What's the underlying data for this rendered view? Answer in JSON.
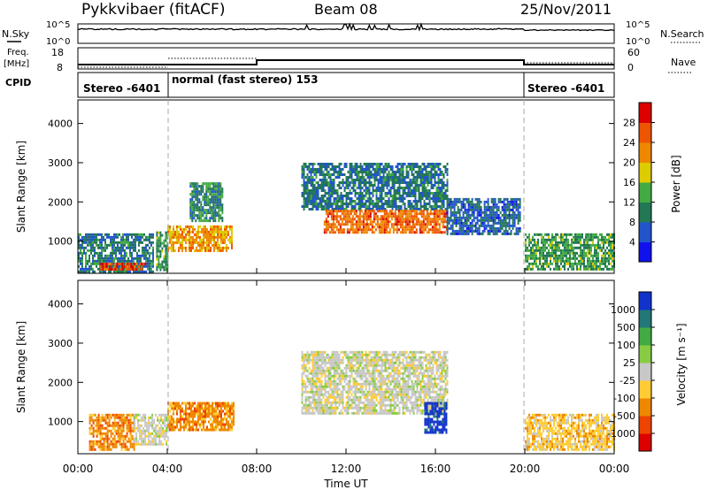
{
  "header": {
    "station": "Pykkvibaer (fitACF)",
    "beam": "Beam 08",
    "date": "25/Nov/2011"
  },
  "strip_labels": {
    "nsky": "N.Sky",
    "freq_line1": "Freq.",
    "freq_line2": "[MHz]",
    "cpid": "CPID",
    "nsearch": "N.Search",
    "nave": "Nave",
    "nsky_ticks": [
      "10^5",
      "10^0"
    ],
    "freq_ticks": [
      "18",
      "8"
    ],
    "nsearch_ticks": [
      "10^5",
      "10^0"
    ],
    "nave_ticks": [
      "60",
      "0"
    ]
  },
  "cpid_segments": [
    {
      "label": "Stereo -6401",
      "start_h": 0,
      "end_h": 4
    },
    {
      "label": "normal (fast stereo) 153",
      "start_h": 4,
      "end_h": 20
    },
    {
      "label": "Stereo -6401",
      "start_h": 20,
      "end_h": 24
    }
  ],
  "x_axis": {
    "label": "Time UT",
    "range_h": [
      0,
      24
    ],
    "ticks": [
      "00:00",
      "04:00",
      "08:00",
      "12:00",
      "16:00",
      "20:00",
      "00:00"
    ]
  },
  "colors": {
    "power_scale": [
      "#1111ee",
      "#2255cc",
      "#227755",
      "#44aa44",
      "#ddcc00",
      "#ee8800",
      "#ee5500",
      "#dd0000"
    ],
    "velocity_scale": [
      "#dd0000",
      "#ee4400",
      "#ee8800",
      "#ffcc33",
      "#c8c8c8",
      "#88cc44",
      "#44aa44",
      "#227777",
      "#1133cc"
    ]
  },
  "chart_data": [
    {
      "type": "heatmap",
      "panel": "power",
      "ylabel": "Slant Range [km]",
      "yticks": [
        "4000",
        "3000",
        "2000",
        "1000"
      ],
      "ylim": [
        180,
        4600
      ],
      "colorbar_label": "Power [dB]",
      "colorbar_ticks": [
        "28",
        "24",
        "20",
        "16",
        "12",
        "8",
        "4"
      ],
      "colorbar_range": [
        0,
        32
      ],
      "regions": [
        {
          "t": [
            0.0,
            3.4
          ],
          "range_km": [
            200,
            1200
          ],
          "value": 8
        },
        {
          "t": [
            1.0,
            3.0
          ],
          "range_km": [
            250,
            450
          ],
          "value": 28
        },
        {
          "t": [
            3.5,
            4.0
          ],
          "range_km": [
            250,
            1250
          ],
          "value": 12
        },
        {
          "t": [
            4.0,
            6.9
          ],
          "range_km": [
            750,
            1400
          ],
          "value": 22
        },
        {
          "t": [
            5.0,
            6.5
          ],
          "range_km": [
            1500,
            2500
          ],
          "value": 10
        },
        {
          "t": [
            10.0,
            16.5
          ],
          "range_km": [
            1800,
            3000
          ],
          "value": 8
        },
        {
          "t": [
            11.0,
            16.5
          ],
          "range_km": [
            1200,
            1800
          ],
          "value": 26
        },
        {
          "t": [
            16.5,
            19.8
          ],
          "range_km": [
            1200,
            2100
          ],
          "value": 6
        },
        {
          "t": [
            20.0,
            24.0
          ],
          "range_km": [
            300,
            1200
          ],
          "value": 12
        }
      ]
    },
    {
      "type": "heatmap",
      "panel": "velocity",
      "ylabel": "Slant Range [km]",
      "yticks": [
        "4000",
        "3000",
        "2000",
        "1000"
      ],
      "ylim": [
        180,
        4600
      ],
      "colorbar_label": "Velocity [m s⁻¹]",
      "colorbar_ticks": [
        "1000",
        "500",
        "100",
        "25",
        "-25",
        "-100",
        "-500",
        "-1000"
      ],
      "regions": [
        {
          "t": [
            0.5,
            2.5
          ],
          "range_km": [
            300,
            1200
          ],
          "value": -200
        },
        {
          "t": [
            2.5,
            4.0
          ],
          "range_km": [
            400,
            1200
          ],
          "value": 0
        },
        {
          "t": [
            4.0,
            7.0
          ],
          "range_km": [
            800,
            1500
          ],
          "value": -250
        },
        {
          "t": [
            10.0,
            16.5
          ],
          "range_km": [
            1200,
            2800
          ],
          "value": 0
        },
        {
          "t": [
            15.5,
            16.5
          ],
          "range_km": [
            700,
            1500
          ],
          "value": 800
        },
        {
          "t": [
            20.0,
            24.0
          ],
          "range_km": [
            300,
            1200
          ],
          "value": -50
        }
      ]
    }
  ]
}
